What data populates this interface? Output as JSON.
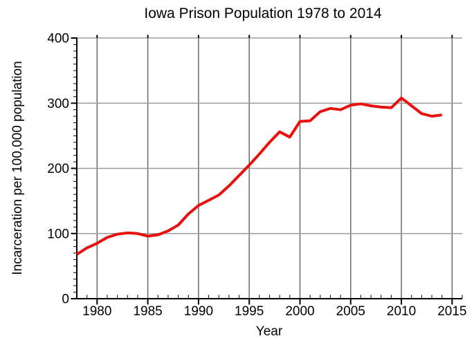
{
  "chart_data": {
    "type": "line",
    "title": "Iowa Prison Population 1978 to 2014",
    "xlabel": "Year",
    "ylabel": "Incarceration per 100,000 population",
    "xlim": [
      1978,
      2016
    ],
    "ylim": [
      0,
      400
    ],
    "x_ticks": [
      1980,
      1985,
      1990,
      1995,
      2000,
      2005,
      2010,
      2015
    ],
    "y_ticks": [
      0,
      100,
      200,
      300,
      400
    ],
    "x_minor_step": 1,
    "y_minor_step": 10,
    "grid": true,
    "legend": "none",
    "line_color": "#e8110e",
    "series": [
      {
        "x": [
          1978,
          1979,
          1980,
          1981,
          1982,
          1983,
          1984,
          1985,
          1986,
          1987,
          1988,
          1989,
          1990,
          1991,
          1992,
          1993,
          1994,
          1995,
          1996,
          1997,
          1998,
          1999,
          2000,
          2001,
          2002,
          2003,
          2004,
          2005,
          2006,
          2007,
          2008,
          2009,
          2010,
          2011,
          2012,
          2013,
          2014
        ],
        "y": [
          68,
          78,
          85,
          94,
          99,
          101,
          100,
          96,
          98,
          104,
          113,
          130,
          143,
          151,
          159,
          173,
          189,
          205,
          222,
          240,
          256,
          248,
          272,
          273,
          287,
          292,
          290,
          297,
          299,
          296,
          294,
          293,
          308,
          296,
          284,
          280,
          282
        ]
      }
    ]
  }
}
